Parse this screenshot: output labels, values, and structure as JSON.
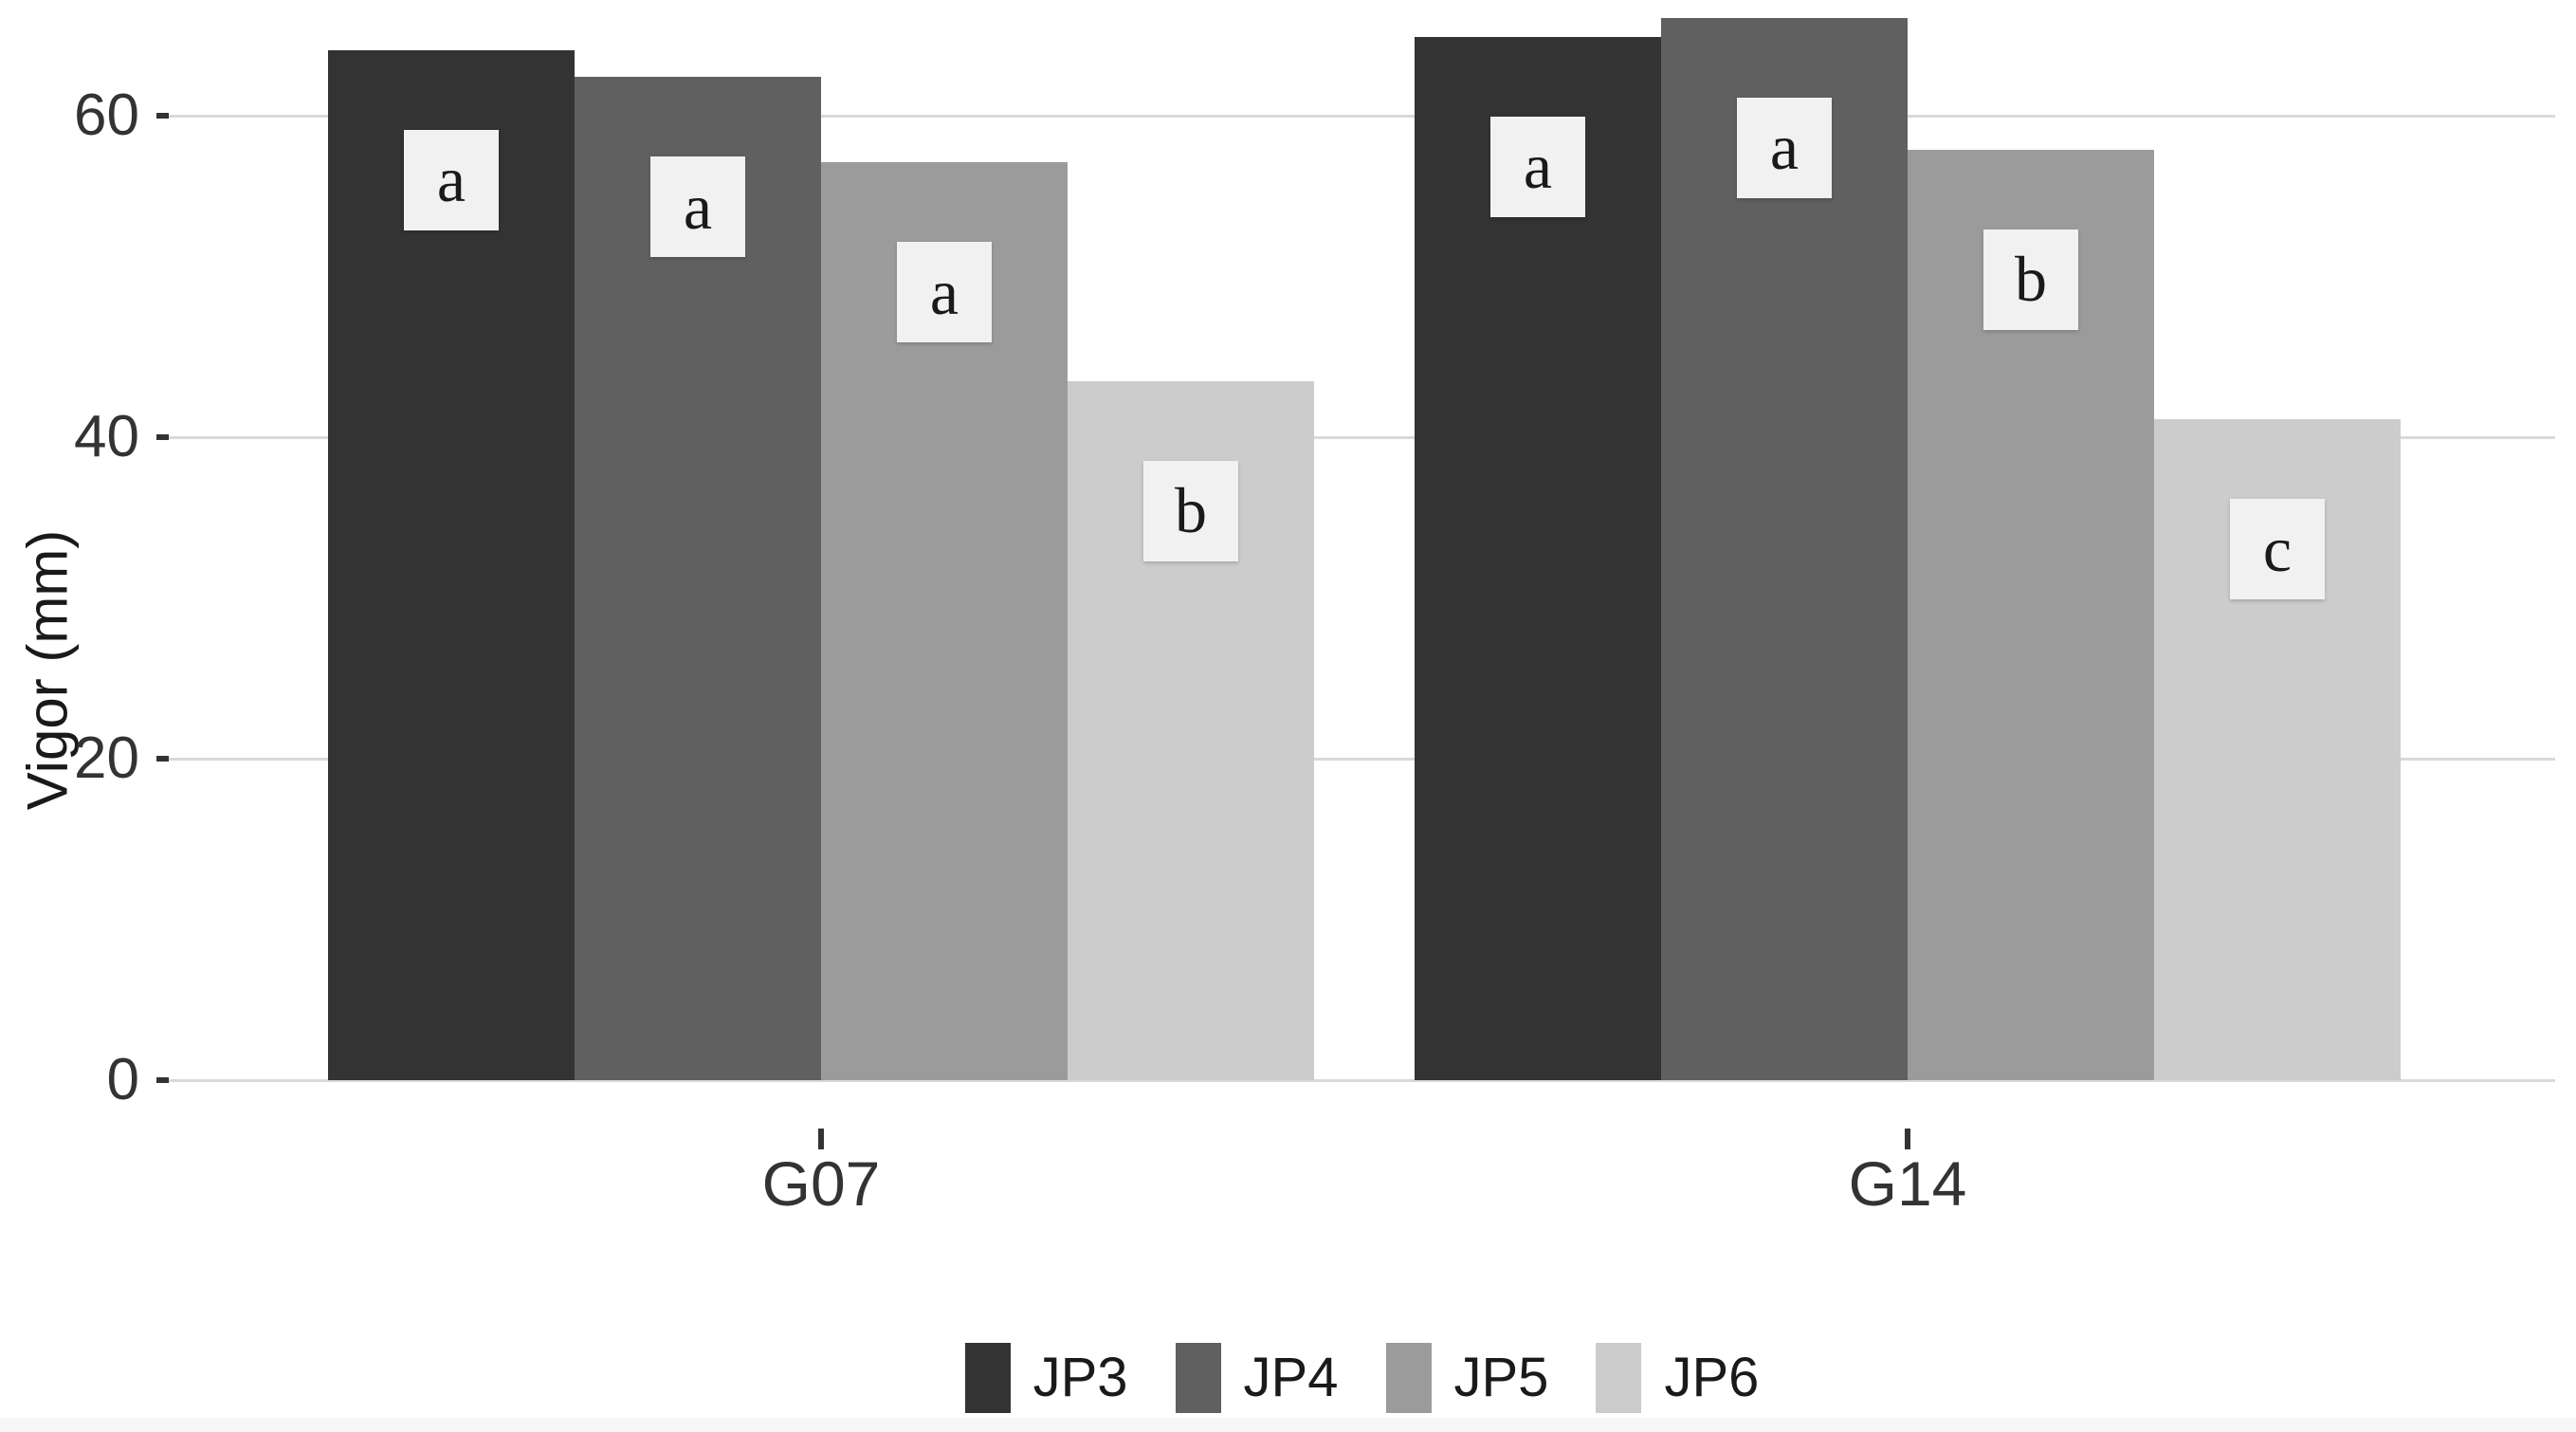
{
  "chart_data": {
    "type": "bar",
    "title": "",
    "xlabel": "",
    "ylabel": "Vigor (mm)",
    "categories": [
      "G07",
      "G14"
    ],
    "series": [
      {
        "name": "JP3",
        "color": "#333333",
        "values": [
          64.1,
          64.9
        ],
        "sig_letters": [
          "a",
          "a"
        ]
      },
      {
        "name": "JP4",
        "color": "#606060",
        "values": [
          62.4,
          66.1
        ],
        "sig_letters": [
          "a",
          "a"
        ]
      },
      {
        "name": "JP5",
        "color": "#9b9b9b",
        "values": [
          57.1,
          57.9
        ],
        "sig_letters": [
          "a",
          "b"
        ]
      },
      {
        "name": "JP6",
        "color": "#cccccc",
        "values": [
          43.5,
          41.1
        ],
        "sig_letters": [
          "b",
          "c"
        ]
      }
    ],
    "y_ticks": [
      0,
      20,
      40,
      60
    ],
    "y_tick_labels": [
      "0",
      "20",
      "40",
      "60"
    ],
    "ylim": [
      0,
      67.2
    ],
    "grid": "horizontal",
    "legend_position": "bottom"
  },
  "colors": {
    "background": "#ffffff",
    "gridline": "#d9d9d9",
    "tick": "#333333",
    "axis_text": "#333333",
    "sig_label_box": "#f1f1f1",
    "sig_label_text": "#1a1a1a",
    "bottom_band": "#f6f6f6"
  }
}
